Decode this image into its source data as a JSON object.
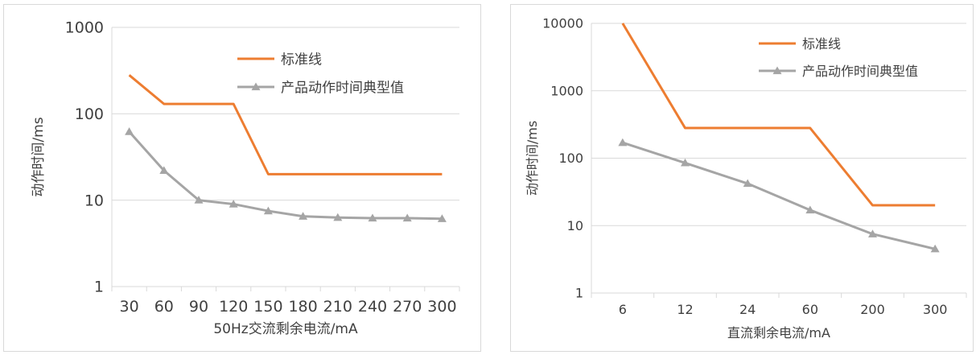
{
  "chart_data": [
    {
      "type": "line",
      "yscale": "log",
      "ylim": [
        1,
        1000
      ],
      "yticks": [
        "1",
        "10",
        "100",
        "1000"
      ],
      "categories": [
        "30",
        "60",
        "90",
        "120",
        "150",
        "180",
        "210",
        "240",
        "270",
        "300"
      ],
      "xlabel": "50Hz交流剩余电流/mA",
      "ylabel": "动作时间/ms",
      "grid": true,
      "legend_position": "top-right",
      "series": [
        {
          "name": "标准线",
          "color": "#ED7D31",
          "marker": "none",
          "values": [
            280,
            130,
            130,
            130,
            20,
            20,
            20,
            20,
            20,
            20
          ]
        },
        {
          "name": "产品动作时间典型值",
          "color": "#A5A5A5",
          "marker": "triangle",
          "values": [
            62,
            22,
            10,
            9,
            7.5,
            6.5,
            6.3,
            6.2,
            6.2,
            6.1
          ]
        }
      ]
    },
    {
      "type": "line",
      "yscale": "log",
      "ylim": [
        1,
        10000
      ],
      "yticks": [
        "1",
        "10",
        "100",
        "1000",
        "10000"
      ],
      "categories": [
        "6",
        "12",
        "24",
        "60",
        "200",
        "300"
      ],
      "xlabel": "直流剩余电流/mA",
      "ylabel": "动作时间/ms",
      "grid": true,
      "legend_position": "top-right",
      "series": [
        {
          "name": "标准线",
          "color": "#ED7D31",
          "marker": "none",
          "values": [
            10000,
            280,
            280,
            280,
            20,
            20
          ]
        },
        {
          "name": "产品动作时间典型值",
          "color": "#A5A5A5",
          "marker": "triangle",
          "values": [
            170,
            85,
            42,
            17,
            7.5,
            4.5
          ]
        }
      ]
    }
  ]
}
